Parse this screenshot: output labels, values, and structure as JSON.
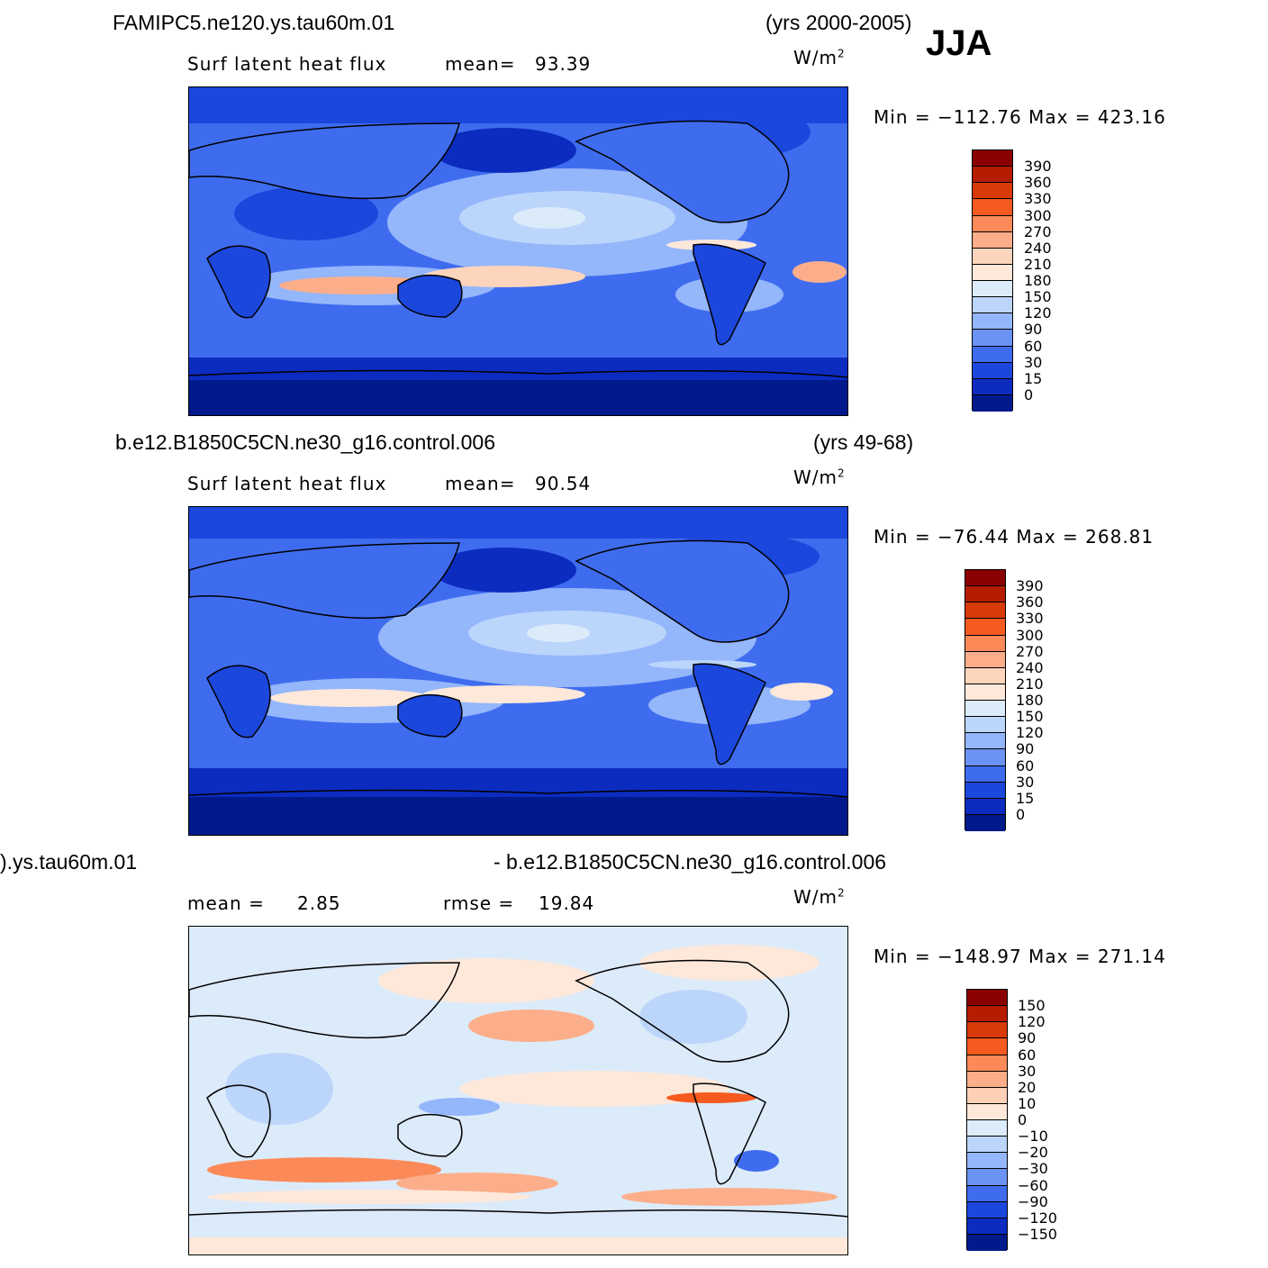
{
  "season": "JJA",
  "units_prefix": "W/m",
  "units_sup": "2",
  "panels": [
    {
      "case": "FAMIPC5.ne120.ys.tau60m.01",
      "years": "(yrs 2000-2005)",
      "variable": "Surf latent heat flux",
      "stat_label": "mean=",
      "stat_value": "93.39",
      "minmax": "Min = −112.76 Max = 423.16",
      "colorbar_labels": [
        "390",
        "360",
        "330",
        "300",
        "270",
        "240",
        "210",
        "180",
        "150",
        "120",
        "90",
        "60",
        "30",
        "15",
        "0"
      ]
    },
    {
      "case": "b.e12.B1850C5CN.ne30_g16.control.006",
      "years": "(yrs 49-68)",
      "variable": "Surf latent heat flux",
      "stat_label": "mean=",
      "stat_value": "90.54",
      "minmax": "Min = −76.44 Max = 268.81",
      "colorbar_labels": [
        "390",
        "360",
        "330",
        "300",
        "270",
        "240",
        "210",
        "180",
        "150",
        "120",
        "90",
        "60",
        "30",
        "15",
        "0"
      ]
    },
    {
      "case_left": ").ys.tau60m.01",
      "case_right": "- b.e12.B1850C5CN.ne30_g16.control.006",
      "mean_label": "mean =",
      "mean_value": "2.85",
      "rmse_label": "rmse =",
      "rmse_value": "19.84",
      "minmax": "Min = −148.97 Max = 271.14",
      "colorbar_labels": [
        "150",
        "120",
        "90",
        "60",
        "30",
        "20",
        "10",
        "0",
        "−10",
        "−20",
        "−30",
        "−60",
        "−90",
        "−120",
        "−150"
      ]
    }
  ],
  "colors": {
    "abs_scale": [
      "#8b0000",
      "#b51c00",
      "#d83a08",
      "#f55a1f",
      "#fc8a58",
      "#fcae8a",
      "#fdd5bd",
      "#fde8da",
      "#dcebfa",
      "#bcd5fb",
      "#94b6fb",
      "#6b93f6",
      "#3f6cef",
      "#1c47dd",
      "#0c2cc0",
      "#001a8b"
    ],
    "diff_scale": [
      "#8b0000",
      "#b51c00",
      "#d83a08",
      "#f55a1f",
      "#fc8a58",
      "#fcae8a",
      "#fdd0b5",
      "#fde8da",
      "#dcebfa",
      "#bcd5fb",
      "#94b6fb",
      "#6b93f6",
      "#3f6cef",
      "#1c47dd",
      "#0c2cc0",
      "#001a8b"
    ]
  }
}
